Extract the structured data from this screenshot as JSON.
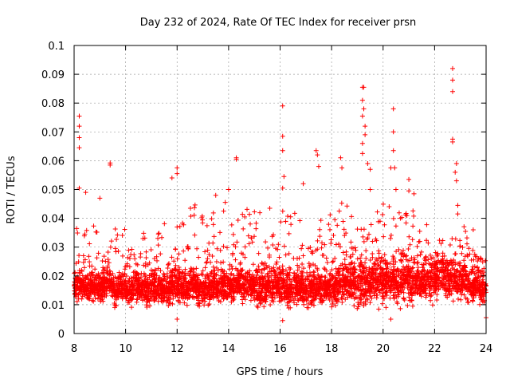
{
  "chart_data": {
    "type": "scatter",
    "title": "Day 232 of 2024, Rate Of TEC Index for receiver prsn",
    "xlabel": "GPS time / hours",
    "ylabel": "ROTI / TECUs",
    "xlim": [
      8,
      24
    ],
    "ylim": [
      0,
      0.1
    ],
    "x_ticks": [
      "8",
      "10",
      "12",
      "14",
      "16",
      "18",
      "20",
      "22",
      "24"
    ],
    "y_ticks": [
      "0",
      "0.01",
      "0.02",
      "0.03",
      "0.04",
      "0.05",
      "0.06",
      "0.07",
      "0.08",
      "0.09",
      "0.1"
    ],
    "grid": true,
    "marker": "+",
    "series_color": "#ff0000",
    "notable_points": [
      {
        "x": 8.2,
        "y": 0.0755
      },
      {
        "x": 8.2,
        "y": 0.072
      },
      {
        "x": 8.2,
        "y": 0.068
      },
      {
        "x": 8.2,
        "y": 0.0645
      },
      {
        "x": 8.2,
        "y": 0.0505
      },
      {
        "x": 8.45,
        "y": 0.049
      },
      {
        "x": 9.0,
        "y": 0.047
      },
      {
        "x": 9.4,
        "y": 0.0592
      },
      {
        "x": 9.4,
        "y": 0.0585
      },
      {
        "x": 11.8,
        "y": 0.054
      },
      {
        "x": 12.0,
        "y": 0.0575
      },
      {
        "x": 12.0,
        "y": 0.0555
      },
      {
        "x": 13.5,
        "y": 0.048
      },
      {
        "x": 14.0,
        "y": 0.05
      },
      {
        "x": 14.3,
        "y": 0.061
      },
      {
        "x": 14.3,
        "y": 0.0605
      },
      {
        "x": 15.6,
        "y": 0.0435
      },
      {
        "x": 16.1,
        "y": 0.079
      },
      {
        "x": 16.1,
        "y": 0.0685
      },
      {
        "x": 16.1,
        "y": 0.0635
      },
      {
        "x": 16.15,
        "y": 0.0545
      },
      {
        "x": 16.1,
        "y": 0.0505
      },
      {
        "x": 16.9,
        "y": 0.052
      },
      {
        "x": 17.4,
        "y": 0.0635
      },
      {
        "x": 17.45,
        "y": 0.062
      },
      {
        "x": 17.5,
        "y": 0.058
      },
      {
        "x": 18.35,
        "y": 0.061
      },
      {
        "x": 18.4,
        "y": 0.0575
      },
      {
        "x": 19.2,
        "y": 0.0855
      },
      {
        "x": 19.25,
        "y": 0.0855
      },
      {
        "x": 19.2,
        "y": 0.081
      },
      {
        "x": 19.25,
        "y": 0.078
      },
      {
        "x": 19.2,
        "y": 0.0755
      },
      {
        "x": 19.3,
        "y": 0.072
      },
      {
        "x": 19.3,
        "y": 0.069
      },
      {
        "x": 19.2,
        "y": 0.066
      },
      {
        "x": 19.2,
        "y": 0.0625
      },
      {
        "x": 19.4,
        "y": 0.059
      },
      {
        "x": 19.5,
        "y": 0.057
      },
      {
        "x": 19.5,
        "y": 0.05
      },
      {
        "x": 20.3,
        "y": 0.0575
      },
      {
        "x": 20.4,
        "y": 0.078
      },
      {
        "x": 20.4,
        "y": 0.07
      },
      {
        "x": 20.4,
        "y": 0.0635
      },
      {
        "x": 20.45,
        "y": 0.0575
      },
      {
        "x": 20.5,
        "y": 0.05
      },
      {
        "x": 21.0,
        "y": 0.0535
      },
      {
        "x": 21.0,
        "y": 0.0495
      },
      {
        "x": 21.2,
        "y": 0.0485
      },
      {
        "x": 22.7,
        "y": 0.092
      },
      {
        "x": 22.7,
        "y": 0.088
      },
      {
        "x": 22.7,
        "y": 0.084
      },
      {
        "x": 22.7,
        "y": 0.0675
      },
      {
        "x": 22.7,
        "y": 0.0665
      },
      {
        "x": 22.85,
        "y": 0.059
      },
      {
        "x": 22.8,
        "y": 0.056
      },
      {
        "x": 22.85,
        "y": 0.053
      },
      {
        "x": 22.9,
        "y": 0.0445
      },
      {
        "x": 22.9,
        "y": 0.0415
      },
      {
        "x": 23.5,
        "y": 0.036
      },
      {
        "x": 24.0,
        "y": 0.0055
      },
      {
        "x": 20.3,
        "y": 0.005
      },
      {
        "x": 12.0,
        "y": 0.005
      },
      {
        "x": 16.1,
        "y": 0.0045
      }
    ],
    "bulk": {
      "hour_start": 8.0,
      "hour_step": 0.25,
      "center": [
        0.016,
        0.016,
        0.016,
        0.016,
        0.016,
        0.017,
        0.015,
        0.016,
        0.015,
        0.016,
        0.016,
        0.015,
        0.016,
        0.015,
        0.015,
        0.017,
        0.016,
        0.016,
        0.017,
        0.015,
        0.016,
        0.017,
        0.016,
        0.016,
        0.016,
        0.017,
        0.016,
        0.017,
        0.016,
        0.016,
        0.016,
        0.017,
        0.016,
        0.015,
        0.016,
        0.016,
        0.015,
        0.016,
        0.016,
        0.016,
        0.016,
        0.017,
        0.018,
        0.017,
        0.017,
        0.017,
        0.018,
        0.018,
        0.018,
        0.018,
        0.018,
        0.019,
        0.018,
        0.018,
        0.018,
        0.018,
        0.019,
        0.019,
        0.019,
        0.019,
        0.018,
        0.017,
        0.017,
        0.016,
        0.016
      ],
      "spread": [
        0.006,
        0.006,
        0.007,
        0.006,
        0.006,
        0.007,
        0.007,
        0.006,
        0.007,
        0.007,
        0.006,
        0.008,
        0.007,
        0.008,
        0.007,
        0.008,
        0.008,
        0.008,
        0.007,
        0.007,
        0.008,
        0.008,
        0.007,
        0.008,
        0.008,
        0.008,
        0.008,
        0.008,
        0.009,
        0.008,
        0.008,
        0.009,
        0.01,
        0.009,
        0.008,
        0.008,
        0.008,
        0.008,
        0.008,
        0.008,
        0.009,
        0.01,
        0.01,
        0.011,
        0.01,
        0.01,
        0.01,
        0.01,
        0.01,
        0.01,
        0.011,
        0.011,
        0.01,
        0.009,
        0.009,
        0.009,
        0.009,
        0.009,
        0.009,
        0.009,
        0.008,
        0.008,
        0.008,
        0.007,
        0.007
      ],
      "peak": [
        0.038,
        0.04,
        0.032,
        0.04,
        0.029,
        0.033,
        0.038,
        0.037,
        0.03,
        0.036,
        0.035,
        0.032,
        0.042,
        0.037,
        0.04,
        0.032,
        0.039,
        0.042,
        0.045,
        0.046,
        0.04,
        0.044,
        0.042,
        0.046,
        0.047,
        0.041,
        0.044,
        0.045,
        0.043,
        0.034,
        0.035,
        0.038,
        0.043,
        0.043,
        0.045,
        0.04,
        0.03,
        0.036,
        0.04,
        0.043,
        0.043,
        0.046,
        0.045,
        0.042,
        0.043,
        0.041,
        0.038,
        0.044,
        0.045,
        0.047,
        0.045,
        0.046,
        0.043,
        0.04,
        0.038,
        0.034,
        0.034,
        0.033,
        0.033,
        0.036,
        0.038,
        0.035,
        0.03,
        0.027,
        0.025
      ]
    }
  }
}
